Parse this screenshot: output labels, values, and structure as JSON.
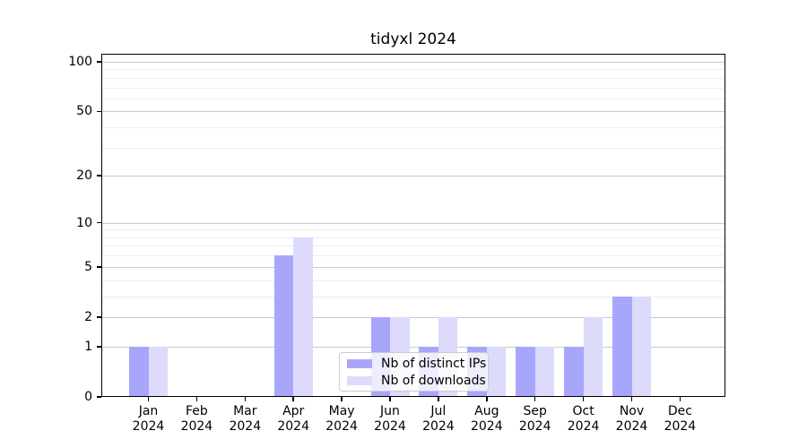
{
  "title": "tidyxl 2024",
  "chart_data": {
    "type": "bar",
    "title": "tidyxl 2024",
    "categories": [
      "Jan 2024",
      "Feb 2024",
      "Mar 2024",
      "Apr 2024",
      "May 2024",
      "Jun 2024",
      "Jul 2024",
      "Aug 2024",
      "Sep 2024",
      "Oct 2024",
      "Nov 2024",
      "Dec 2024"
    ],
    "series": [
      {
        "name": "Nb of distinct IPs",
        "color": "#a8a6fa",
        "values": [
          1,
          0,
          0,
          6,
          0,
          2,
          1,
          1,
          1,
          1,
          3,
          0
        ]
      },
      {
        "name": "Nb of downloads",
        "color": "#dcdbfb",
        "values": [
          1,
          0,
          0,
          8,
          0,
          2,
          2,
          1,
          1,
          2,
          3,
          0
        ]
      }
    ],
    "xlabel": "",
    "ylabel": "",
    "yscale": "log1p",
    "ylim": [
      0,
      112
    ],
    "y_major_ticks": [
      0,
      1,
      2,
      5,
      10,
      20,
      50,
      100
    ],
    "y_minor_gridlines": [
      3,
      4,
      6,
      7,
      8,
      9,
      30,
      40,
      60,
      70,
      80,
      90
    ],
    "grid": true,
    "legend_position": "inside lower center"
  },
  "colors": {
    "major_grid": "#c9c9c9",
    "minor_grid": "#ededed",
    "spine": "#000000",
    "legend_border": "#cccccc",
    "bar_distinct_ips": "#a8a6fa",
    "bar_downloads": "#dcdbfb"
  }
}
